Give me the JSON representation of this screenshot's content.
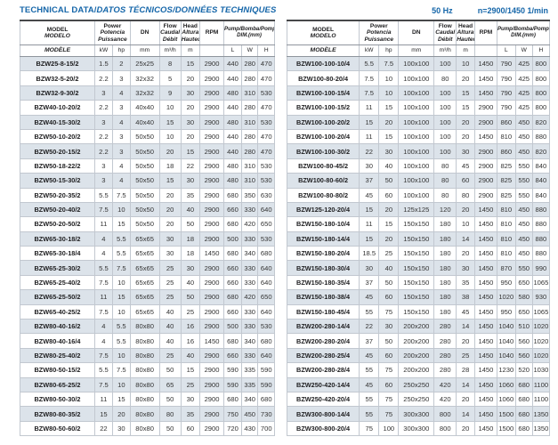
{
  "title": {
    "part1": "TECHNICAL DATA/",
    "part2": "DATOS TÉCNICOS/DONNÉES TECHNIQUES"
  },
  "frequency_note": {
    "hz": "50 Hz",
    "speed": "n=2900/1450 1/min"
  },
  "colors": {
    "accent_blue": "#1566a9",
    "row_shade": "#dce3ea",
    "border": "#c2c8d0"
  },
  "header": {
    "model_l1": "MODEL",
    "model_l2": "MODELO",
    "model_l3": "MODÈLE",
    "power_l1": "Power",
    "power_l2": "Potencia",
    "power_l3": "Puissance",
    "power_unit_kw": "kW",
    "power_unit_hp": "hp",
    "dn_label": "DN",
    "dn_unit": "mm",
    "flow_l1": "Flow",
    "flow_l2": "Caudal",
    "flow_l3": "Débit",
    "flow_unit": "m³/h",
    "head_l1": "Head",
    "head_l2": "Altura",
    "head_l3": "Hauteur",
    "head_unit": "m",
    "rpm_label": "RPM",
    "dim_l1": "Pump/Bomba/Pompe",
    "dim_l2": "DIM.(mm)",
    "dim_unit_l": "L",
    "dim_unit_w": "W",
    "dim_unit_h": "H"
  },
  "left_table": {
    "rows": [
      [
        "BZW25-8-15/2",
        "1.5",
        "2",
        "25x25",
        "8",
        "15",
        "2900",
        "440",
        "280",
        "470"
      ],
      [
        "BZW32-5-20/2",
        "2.2",
        "3",
        "32x32",
        "5",
        "20",
        "2900",
        "440",
        "280",
        "470"
      ],
      [
        "BZW32-9-30/2",
        "3",
        "4",
        "32x32",
        "9",
        "30",
        "2900",
        "480",
        "310",
        "530"
      ],
      [
        "BZW40-10-20/2",
        "2.2",
        "3",
        "40x40",
        "10",
        "20",
        "2900",
        "440",
        "280",
        "470"
      ],
      [
        "BZW40-15-30/2",
        "3",
        "4",
        "40x40",
        "15",
        "30",
        "2900",
        "480",
        "310",
        "530"
      ],
      [
        "BZW50-10-20/2",
        "2.2",
        "3",
        "50x50",
        "10",
        "20",
        "2900",
        "440",
        "280",
        "470"
      ],
      [
        "BZW50-20-15/2",
        "2.2",
        "3",
        "50x50",
        "20",
        "15",
        "2900",
        "440",
        "280",
        "470"
      ],
      [
        "BZW50-18-22/2",
        "3",
        "4",
        "50x50",
        "18",
        "22",
        "2900",
        "480",
        "310",
        "530"
      ],
      [
        "BZW50-15-30/2",
        "3",
        "4",
        "50x50",
        "15",
        "30",
        "2900",
        "480",
        "310",
        "530"
      ],
      [
        "BZW50-20-35/2",
        "5.5",
        "7.5",
        "50x50",
        "20",
        "35",
        "2900",
        "680",
        "350",
        "630"
      ],
      [
        "BZW50-20-40/2",
        "7.5",
        "10",
        "50x50",
        "20",
        "40",
        "2900",
        "660",
        "330",
        "640"
      ],
      [
        "BZW50-20-50/2",
        "11",
        "15",
        "50x50",
        "20",
        "50",
        "2900",
        "680",
        "420",
        "650"
      ],
      [
        "BZW65-30-18/2",
        "4",
        "5.5",
        "65x65",
        "30",
        "18",
        "2900",
        "500",
        "330",
        "530"
      ],
      [
        "BZW65-30-18/4",
        "4",
        "5.5",
        "65x65",
        "30",
        "18",
        "1450",
        "680",
        "340",
        "680"
      ],
      [
        "BZW65-25-30/2",
        "5.5",
        "7.5",
        "65x65",
        "25",
        "30",
        "2900",
        "660",
        "330",
        "640"
      ],
      [
        "BZW65-25-40/2",
        "7.5",
        "10",
        "65x65",
        "25",
        "40",
        "2900",
        "660",
        "330",
        "640"
      ],
      [
        "BZW65-25-50/2",
        "11",
        "15",
        "65x65",
        "25",
        "50",
        "2900",
        "680",
        "420",
        "650"
      ],
      [
        "BZW65-40-25/2",
        "7.5",
        "10",
        "65x65",
        "40",
        "25",
        "2900",
        "660",
        "330",
        "640"
      ],
      [
        "BZW80-40-16/2",
        "4",
        "5.5",
        "80x80",
        "40",
        "16",
        "2900",
        "500",
        "330",
        "530"
      ],
      [
        "BZW80-40-16/4",
        "4",
        "5.5",
        "80x80",
        "40",
        "16",
        "1450",
        "680",
        "340",
        "680"
      ],
      [
        "BZW80-25-40/2",
        "7.5",
        "10",
        "80x80",
        "25",
        "40",
        "2900",
        "660",
        "330",
        "640"
      ],
      [
        "BZW80-50-15/2",
        "5.5",
        "7.5",
        "80x80",
        "50",
        "15",
        "2900",
        "590",
        "335",
        "590"
      ],
      [
        "BZW80-65-25/2",
        "7.5",
        "10",
        "80x80",
        "65",
        "25",
        "2900",
        "590",
        "335",
        "590"
      ],
      [
        "BZW80-50-30/2",
        "11",
        "15",
        "80x80",
        "50",
        "30",
        "2900",
        "680",
        "340",
        "680"
      ],
      [
        "BZW80-80-35/2",
        "15",
        "20",
        "80x80",
        "80",
        "35",
        "2900",
        "750",
        "450",
        "730"
      ],
      [
        "BZW80-50-60/2",
        "22",
        "30",
        "80x80",
        "50",
        "60",
        "2900",
        "720",
        "430",
        "700"
      ]
    ]
  },
  "right_table": {
    "rows": [
      [
        "BZW100-100-10/4",
        "5.5",
        "7.5",
        "100x100",
        "100",
        "10",
        "1450",
        "790",
        "425",
        "800"
      ],
      [
        "BZW100-80-20/4",
        "7.5",
        "10",
        "100x100",
        "80",
        "20",
        "1450",
        "790",
        "425",
        "800"
      ],
      [
        "BZW100-100-15/4",
        "7.5",
        "10",
        "100x100",
        "100",
        "15",
        "1450",
        "790",
        "425",
        "800"
      ],
      [
        "BZW100-100-15/2",
        "11",
        "15",
        "100x100",
        "100",
        "15",
        "2900",
        "790",
        "425",
        "800"
      ],
      [
        "BZW100-100-20/2",
        "15",
        "20",
        "100x100",
        "100",
        "20",
        "2900",
        "860",
        "450",
        "820"
      ],
      [
        "BZW100-100-20/4",
        "11",
        "15",
        "100x100",
        "100",
        "20",
        "1450",
        "810",
        "450",
        "880"
      ],
      [
        "BZW100-100-30/2",
        "22",
        "30",
        "100x100",
        "100",
        "30",
        "2900",
        "860",
        "450",
        "820"
      ],
      [
        "BZW100-80-45/2",
        "30",
        "40",
        "100x100",
        "80",
        "45",
        "2900",
        "825",
        "550",
        "840"
      ],
      [
        "BZW100-80-60/2",
        "37",
        "50",
        "100x100",
        "80",
        "60",
        "2900",
        "825",
        "550",
        "840"
      ],
      [
        "BZW100-80-80/2",
        "45",
        "60",
        "100x100",
        "80",
        "80",
        "2900",
        "825",
        "550",
        "840"
      ],
      [
        "BZW125-120-20/4",
        "15",
        "20",
        "125x125",
        "120",
        "20",
        "1450",
        "810",
        "450",
        "880"
      ],
      [
        "BZW150-180-10/4",
        "11",
        "15",
        "150x150",
        "180",
        "10",
        "1450",
        "810",
        "450",
        "880"
      ],
      [
        "BZW150-180-14/4",
        "15",
        "20",
        "150x150",
        "180",
        "14",
        "1450",
        "810",
        "450",
        "880"
      ],
      [
        "BZW150-180-20/4",
        "18.5",
        "25",
        "150x150",
        "180",
        "20",
        "1450",
        "810",
        "450",
        "880"
      ],
      [
        "BZW150-180-30/4",
        "30",
        "40",
        "150x150",
        "180",
        "30",
        "1450",
        "870",
        "550",
        "990"
      ],
      [
        "BZW150-180-35/4",
        "37",
        "50",
        "150x150",
        "180",
        "35",
        "1450",
        "950",
        "650",
        "1065"
      ],
      [
        "BZW150-180-38/4",
        "45",
        "60",
        "150x150",
        "180",
        "38",
        "1450",
        "1020",
        "580",
        "930"
      ],
      [
        "BZW150-180-45/4",
        "55",
        "75",
        "150x150",
        "180",
        "45",
        "1450",
        "950",
        "650",
        "1065"
      ],
      [
        "BZW200-280-14/4",
        "22",
        "30",
        "200x200",
        "280",
        "14",
        "1450",
        "1040",
        "510",
        "1020"
      ],
      [
        "BZW200-280-20/4",
        "37",
        "50",
        "200x200",
        "280",
        "20",
        "1450",
        "1040",
        "560",
        "1020"
      ],
      [
        "BZW200-280-25/4",
        "45",
        "60",
        "200x200",
        "280",
        "25",
        "1450",
        "1040",
        "560",
        "1020"
      ],
      [
        "BZW200-280-28/4",
        "55",
        "75",
        "200x200",
        "280",
        "28",
        "1450",
        "1230",
        "520",
        "1030"
      ],
      [
        "BZW250-420-14/4",
        "45",
        "60",
        "250x250",
        "420",
        "14",
        "1450",
        "1060",
        "680",
        "1100"
      ],
      [
        "BZW250-420-20/4",
        "55",
        "75",
        "250x250",
        "420",
        "20",
        "1450",
        "1060",
        "680",
        "1100"
      ],
      [
        "BZW300-800-14/4",
        "55",
        "75",
        "300x300",
        "800",
        "14",
        "1450",
        "1500",
        "680",
        "1350"
      ],
      [
        "BZW300-800-20/4",
        "75",
        "100",
        "300x300",
        "800",
        "20",
        "1450",
        "1500",
        "680",
        "1350"
      ]
    ]
  }
}
